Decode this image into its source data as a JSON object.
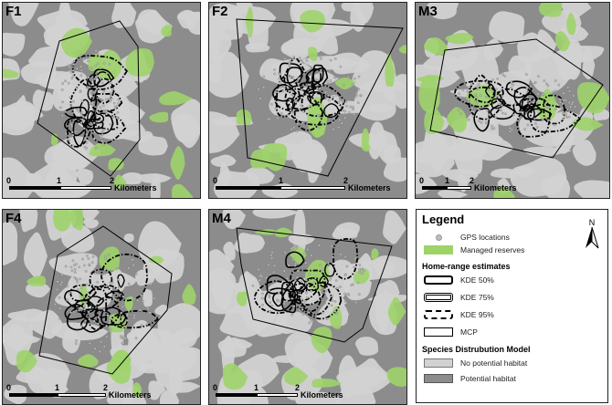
{
  "panels": [
    {
      "id": "F1",
      "label": "F1",
      "scale": {
        "ticks": [
          "0",
          "1",
          "2"
        ],
        "unit": "Kilometers"
      }
    },
    {
      "id": "F2",
      "label": "F2",
      "scale": {
        "ticks": [
          "0",
          "1",
          "2"
        ],
        "unit": "Kilometers"
      }
    },
    {
      "id": "M3",
      "label": "M3",
      "scale": {
        "ticks": [
          "0",
          "1",
          "2"
        ],
        "unit": "Kilometers"
      }
    },
    {
      "id": "F4",
      "label": "F4",
      "scale": {
        "ticks": [
          "0",
          "1",
          "2"
        ],
        "unit": "Kilometers"
      }
    },
    {
      "id": "M4",
      "label": "M4",
      "scale": {
        "ticks": [
          "0",
          "1",
          "2"
        ],
        "unit": "Kilometers"
      }
    }
  ],
  "legend": {
    "title": "Legend",
    "north_label": "N",
    "items_top": [
      {
        "label": "GPS locations",
        "symbol": "dot"
      },
      {
        "label": "Managed reserves",
        "symbol": "green"
      }
    ],
    "home_range_title": "Home-range estimates",
    "home_range_items": [
      {
        "label": "KDE 50%",
        "symbol": "kde50"
      },
      {
        "label": "KDE 75%",
        "symbol": "kde75"
      },
      {
        "label": "KDE 95%",
        "symbol": "kde95"
      },
      {
        "label": "MCP",
        "symbol": "mcp"
      }
    ],
    "sdm_title": "Species Distrubution Model",
    "sdm_items": [
      {
        "label": "No potential habitat",
        "symbol": "light"
      },
      {
        "label": "Potential habitat",
        "symbol": "dark"
      }
    ]
  },
  "colors": {
    "potential_habitat": "#8c8c8c",
    "no_potential_habitat": "#d2d2d2",
    "managed_reserves": "#9ed36a",
    "gps_points": "#bdbdbd",
    "outline": "#000000"
  }
}
